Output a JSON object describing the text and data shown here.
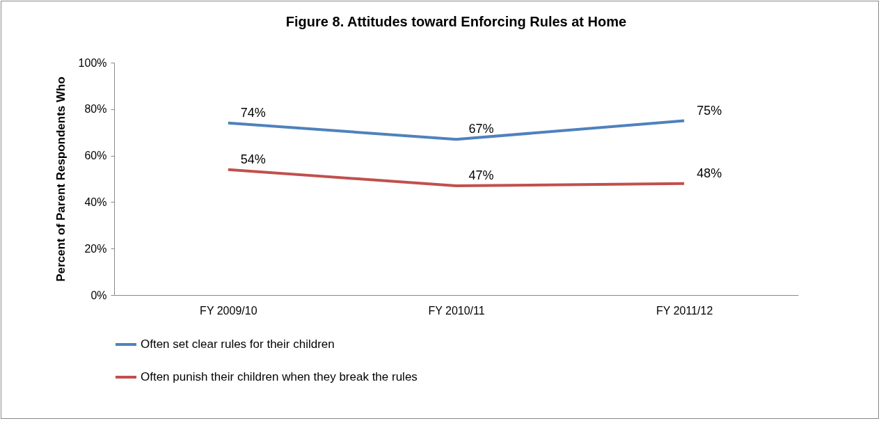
{
  "chart_data": {
    "type": "line",
    "title": "Figure 8. Attitudes toward Enforcing Rules at Home",
    "ylabel": "Percent of Parent Respondents Who",
    "categories": [
      "FY 2009/10",
      "FY 2010/11",
      "FY 2011/12"
    ],
    "series": [
      {
        "name": "Often set clear rules for their children",
        "color": "#4f81bd",
        "values": [
          74,
          67,
          75
        ],
        "value_labels": [
          "74%",
          "67%",
          "75%"
        ]
      },
      {
        "name": "Often punish their children when they break the rules",
        "color": "#c0504d",
        "values": [
          54,
          47,
          48
        ],
        "value_labels": [
          "54%",
          "47%",
          "48%"
        ]
      }
    ],
    "ylim": [
      0,
      100
    ],
    "yticks": [
      {
        "value": 0,
        "label": "0%"
      },
      {
        "value": 20,
        "label": "20%"
      },
      {
        "value": 40,
        "label": "40%"
      },
      {
        "value": 60,
        "label": "60%"
      },
      {
        "value": 80,
        "label": "80%"
      },
      {
        "value": 100,
        "label": "100%"
      }
    ],
    "grid": false,
    "legend": "bottom",
    "marker": "none",
    "line_style": "solid"
  }
}
